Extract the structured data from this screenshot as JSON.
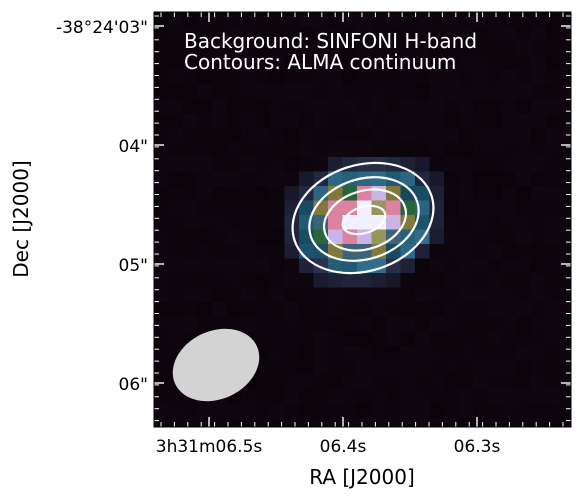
{
  "legend_lines": [
    "Background: SINFONI H-band",
    "Contours: ALMA continuum"
  ],
  "axes": {
    "xlabel": "RA [J2000]",
    "ylabel": "Dec [J2000]",
    "x_ticks": [
      "3h31m06.5s",
      "06.4s",
      "06.3s"
    ],
    "y_ticks": [
      "-38°24'03\"",
      "04\"",
      "05\"",
      "06\""
    ]
  },
  "colors": {
    "background": "#0a0408",
    "contour": "#ffffff",
    "beam": "#d3d3d3"
  },
  "contour_count": 4,
  "has_beam_ellipse": true
}
